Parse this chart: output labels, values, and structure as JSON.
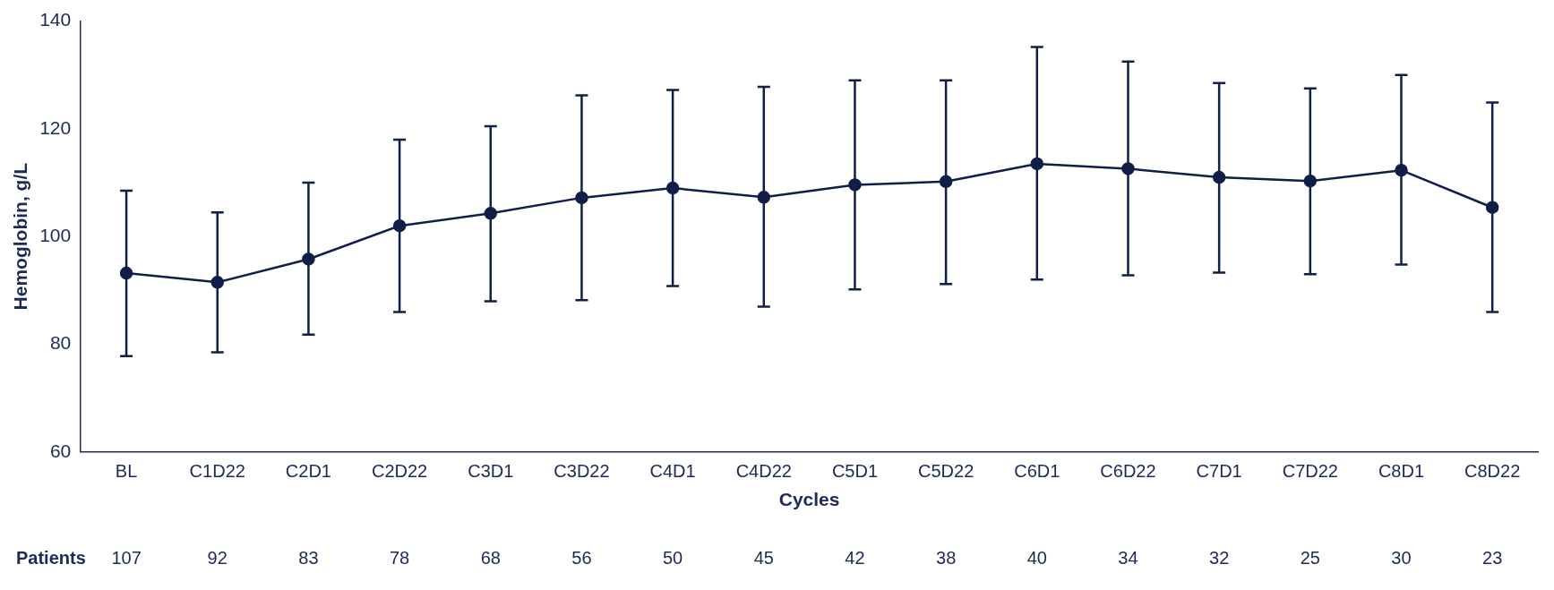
{
  "chart_data": {
    "type": "line",
    "xlabel": "Cycles",
    "ylabel": "Hemoglobin, g/L",
    "categories": [
      "BL",
      "C1D22",
      "C2D1",
      "C2D22",
      "C3D1",
      "C3D22",
      "C4D1",
      "C4D22",
      "C5D1",
      "C5D22",
      "C6D1",
      "C6D22",
      "C7D1",
      "C7D22",
      "C8D1",
      "C8D22"
    ],
    "series": [
      {
        "color": "#0f1f48",
        "values": [
          93.2,
          91.5,
          95.8,
          102,
          104.3,
          107.2,
          109,
          107.3,
          109.6,
          110.2,
          113.5,
          112.6,
          111,
          110.3,
          112.3,
          105.4
        ],
        "errors": [
          [
            77.8,
            108.5
          ],
          [
            78.5,
            104.5
          ],
          [
            81.8,
            110
          ],
          [
            86,
            118
          ],
          [
            88,
            120.5
          ],
          [
            88.2,
            126.2
          ],
          [
            90.8,
            127.2
          ],
          [
            87,
            127.8
          ],
          [
            90.2,
            129
          ],
          [
            91.2,
            129
          ],
          [
            92,
            135.2
          ],
          [
            92.8,
            132.5
          ],
          [
            93.3,
            128.5
          ],
          [
            93,
            127.5
          ],
          [
            94.8,
            130
          ],
          [
            86,
            124.9
          ]
        ]
      }
    ],
    "ylim": [
      60,
      140
    ],
    "yticks": [
      60,
      80,
      100,
      120,
      140
    ],
    "grid": false,
    "legend": false,
    "marker": "circle",
    "line_style": "solid",
    "annotations": [
      "Patients",
      "107",
      "92",
      "83",
      "78",
      "68",
      "56",
      "50",
      "45",
      "42",
      "38",
      "40",
      "34",
      "32",
      "25",
      "30",
      "23"
    ]
  }
}
